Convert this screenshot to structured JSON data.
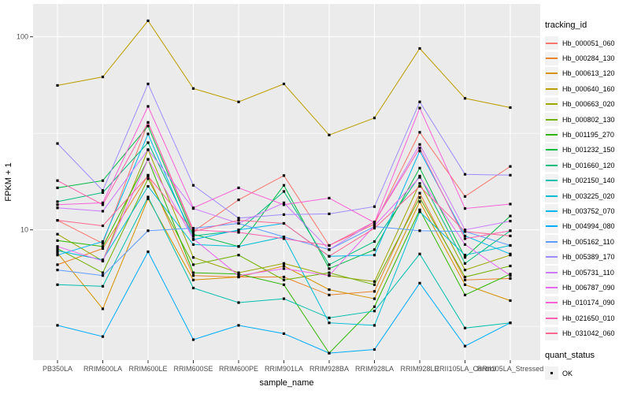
{
  "chart_data": {
    "type": "line",
    "xlabel": "sample_name",
    "ylabel": "FPKM + 1",
    "yscale": "log10",
    "ylim": [
      2.1,
      135
    ],
    "yticks": [
      10,
      100
    ],
    "yminor": [
      3.162,
      31.62
    ],
    "grid": true,
    "legend_position": "right",
    "point_shape": "square",
    "point_color": "#000000",
    "panel_bg": "#EBEBEB",
    "categories": [
      "PB350LA",
      "RRIM600LA",
      "RRIM600LE",
      "RRIM600SE",
      "RRIM600PE",
      "RRIM901LA",
      "RRIM928BA",
      "RRIM928LA",
      "RRIM928LE",
      "RRII105LA_Control",
      "RRII105LA_Stressed"
    ],
    "series": [
      {
        "name": "Hb_000051_060",
        "color": "#F8766D",
        "values": [
          11.2,
          8.5,
          36,
          9.8,
          14.3,
          19.1,
          8.3,
          10.7,
          32,
          14.9,
          21.3
        ]
      },
      {
        "name": "Hb_000284_130",
        "color": "#E9842C",
        "values": [
          6.6,
          8.0,
          19.2,
          5.8,
          5.7,
          5.7,
          4.6,
          4.8,
          15.5,
          5.5,
          5.6
        ]
      },
      {
        "name": "Hb_000613_120",
        "color": "#D69100",
        "values": [
          7.6,
          3.9,
          14.5,
          5.5,
          5.7,
          6.5,
          4.9,
          4.4,
          14.0,
          5.2,
          4.3
        ]
      },
      {
        "name": "Hb_000640_160",
        "color": "#BC9D00",
        "values": [
          56,
          62,
          121,
          54,
          46,
          57,
          31,
          38,
          87,
          48,
          43
        ]
      },
      {
        "name": "Hb_000663_020",
        "color": "#9CA700",
        "values": [
          9.5,
          6.9,
          26,
          7.2,
          6.0,
          6.7,
          5.8,
          5.4,
          17.4,
          6.2,
          7.4
        ]
      },
      {
        "name": "Hb_000802_130",
        "color": "#6FB000",
        "values": [
          8.0,
          6.0,
          18.4,
          6.6,
          7.4,
          5.5,
          6.0,
          5.2,
          14.7,
          5.7,
          6.5
        ]
      },
      {
        "name": "Hb_001195_270",
        "color": "#2FB600",
        "values": [
          8.8,
          8.2,
          23.2,
          6.0,
          5.9,
          5.2,
          2.3,
          4.0,
          12.7,
          4.6,
          5.9
        ]
      },
      {
        "name": "Hb_001232_150",
        "color": "#00BA42",
        "values": [
          16.5,
          18,
          34.5,
          9.5,
          8.2,
          17,
          6.3,
          7.9,
          20.9,
          7.2,
          11.8
        ]
      },
      {
        "name": "Hb_001660_120",
        "color": "#00BD7E",
        "values": [
          14,
          15.6,
          28.3,
          9.3,
          9.9,
          15.8,
          6.6,
          8.7,
          19,
          6.7,
          9.9
        ]
      },
      {
        "name": "Hb_002150_140",
        "color": "#00BFAD",
        "values": [
          5.2,
          5.1,
          14.8,
          5.0,
          4.2,
          4.4,
          3.5,
          3.8,
          7.5,
          3.1,
          3.3
        ]
      },
      {
        "name": "Hb_003225_020",
        "color": "#00BDD4",
        "values": [
          7.8,
          7.0,
          16.8,
          8.4,
          8.2,
          9.2,
          3.3,
          3.2,
          12.4,
          7.4,
          8.3
        ]
      },
      {
        "name": "Hb_003752_070",
        "color": "#00B7EC",
        "values": [
          7.4,
          8.7,
          31.4,
          8.9,
          10.0,
          10.8,
          7.3,
          7.4,
          25.6,
          9.3,
          7.5
        ]
      },
      {
        "name": "Hb_004994_080",
        "color": "#00ACFA",
        "values": [
          3.2,
          2.8,
          7.7,
          2.7,
          3.2,
          2.9,
          2.3,
          2.4,
          5.3,
          2.5,
          3.3
        ]
      },
      {
        "name": "Hb_005162_110",
        "color": "#5E9BFF",
        "values": [
          6.2,
          5.8,
          9.9,
          10.2,
          10.8,
          9.2,
          7.9,
          10.4,
          9.9,
          9.8,
          8.3
        ]
      },
      {
        "name": "Hb_005389_170",
        "color": "#A08CFF",
        "values": [
          28,
          16,
          57,
          17,
          11.5,
          12,
          12.1,
          13.2,
          46,
          19.4,
          19.2
        ]
      },
      {
        "name": "Hb_005731_110",
        "color": "#CB79FF",
        "values": [
          13,
          12.5,
          26,
          12.9,
          10.8,
          13.8,
          7.9,
          11.0,
          27.7,
          10.0,
          11.1
        ]
      },
      {
        "name": "Hb_006787_090",
        "color": "#E868F0",
        "values": [
          8.2,
          6.9,
          23.2,
          9.0,
          5.8,
          6.3,
          5.8,
          10.5,
          18.7,
          8.4,
          5.8
        ]
      },
      {
        "name": "Hb_010174_090",
        "color": "#FA61D7",
        "values": [
          13.5,
          13.8,
          43.6,
          13.0,
          16.5,
          13.5,
          14.6,
          10.9,
          42.7,
          12.9,
          13.6
        ]
      },
      {
        "name": "Hb_021650_010",
        "color": "#FF61B0",
        "values": [
          18,
          13.5,
          36,
          10.0,
          9.7,
          9.0,
          8.3,
          11.0,
          26.5,
          9.0,
          9.9
        ]
      },
      {
        "name": "Hb_031042_060",
        "color": "#FF6792",
        "values": [
          11.2,
          10.5,
          19,
          9.8,
          11.2,
          10.8,
          7.3,
          10.2,
          16.8,
          9.8,
          9.3
        ]
      }
    ]
  },
  "legend": {
    "tracking_title": "tracking_id",
    "quant_title": "quant_status",
    "quant_items": [
      "OK"
    ]
  }
}
